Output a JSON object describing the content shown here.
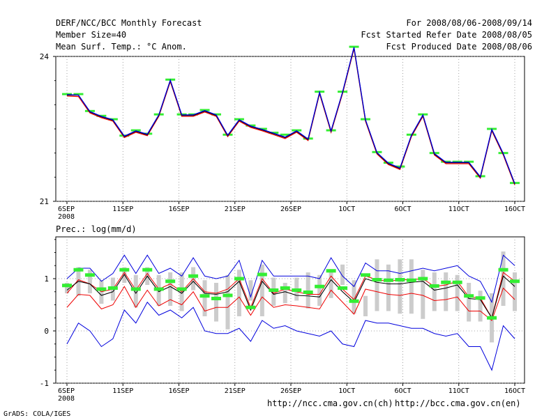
{
  "header": {
    "title": "DERF/NCC/BCC Monthly Forecast",
    "member_size": "Member Size=40",
    "variable": "Mean Surf. Temp.: °C Anom.",
    "period": "For 2008/08/06-2008/09/14",
    "fcst_started": "Fcst Started Refer Date 2008/08/05",
    "fcst_produced": "Fcst Produced Date 2008/08/06"
  },
  "footer": {
    "grads": "GrADS: COLA/IGES",
    "url_ncc": "http://ncc.cma.gov.cn(ch)",
    "url_bcc": "http://bcc.cma.gov.cn(en)"
  },
  "colors": {
    "green": "#33ee33",
    "red": "#ee0000",
    "blue": "#0000dd",
    "gray": "#cccccc",
    "black": "#000000"
  },
  "chart_data": [
    {
      "type": "line",
      "title": "Mean Surf. Temp.: °C Anom.",
      "x_tick_labels": [
        "6SEP",
        "11SEP",
        "16SEP",
        "21SEP",
        "26SEP",
        "1OCT",
        "6OCT",
        "11OCT",
        "16OCT"
      ],
      "x_tick_sublabel": "2008",
      "x_tick_days": [
        0,
        5,
        10,
        15,
        20,
        25,
        30,
        35,
        40
      ],
      "ylim": [
        21,
        24
      ],
      "y_ticks": [
        21,
        24
      ],
      "grid": true,
      "series": [
        {
          "name": "ensemble max",
          "color": "#33ee33",
          "values": [
            23.22,
            23.22,
            22.87,
            22.77,
            22.7,
            22.36,
            22.47,
            22.4,
            22.8,
            23.52,
            22.8,
            22.8,
            22.89,
            22.8,
            22.38,
            22.7,
            22.57,
            22.5,
            22.42,
            22.38,
            22.47,
            22.3,
            23.27,
            22.47,
            23.27,
            24.2,
            22.7,
            22.02,
            21.8,
            21.72,
            22.38,
            22.8,
            22.0,
            21.82,
            21.82,
            21.82,
            21.52,
            22.5,
            22.0,
            21.38
          ]
        },
        {
          "name": "ensemble mean",
          "color": "#000000",
          "values": [
            23.2,
            23.2,
            22.85,
            22.75,
            22.68,
            22.34,
            22.45,
            22.38,
            22.78,
            23.5,
            22.78,
            22.78,
            22.87,
            22.78,
            22.36,
            22.68,
            22.55,
            22.48,
            22.4,
            22.32,
            22.45,
            22.28,
            23.25,
            22.45,
            23.25,
            24.18,
            22.68,
            22.0,
            21.78,
            21.68,
            22.36,
            22.78,
            21.98,
            21.8,
            21.8,
            21.8,
            21.5,
            22.48,
            21.98,
            21.36
          ]
        },
        {
          "name": "ensemble min",
          "color": "#ee0000",
          "values": [
            23.18,
            23.17,
            22.83,
            22.73,
            22.66,
            22.32,
            22.43,
            22.36,
            22.76,
            23.48,
            22.76,
            22.76,
            22.85,
            22.76,
            22.34,
            22.66,
            22.53,
            22.46,
            22.38,
            22.3,
            22.43,
            22.26,
            23.23,
            22.43,
            23.23,
            24.16,
            22.66,
            21.98,
            21.76,
            21.66,
            22.34,
            22.76,
            21.96,
            21.78,
            21.78,
            21.78,
            21.48,
            22.46,
            21.96,
            21.34
          ]
        },
        {
          "name": "control",
          "color": "#0000dd",
          "values": [
            23.21,
            23.2,
            22.86,
            22.76,
            22.69,
            22.35,
            22.46,
            22.39,
            22.79,
            23.51,
            22.79,
            22.79,
            22.88,
            22.79,
            22.37,
            22.69,
            22.56,
            22.49,
            22.41,
            22.33,
            22.46,
            22.29,
            23.26,
            22.46,
            23.26,
            24.19,
            22.69,
            22.01,
            21.79,
            21.69,
            22.37,
            22.79,
            21.99,
            21.81,
            21.81,
            21.81,
            21.51,
            22.49,
            21.99,
            21.37
          ]
        }
      ]
    },
    {
      "type": "line",
      "title": "Prec.: log(mm/d)",
      "x_tick_labels": [
        "6SEP",
        "11SEP",
        "16SEP",
        "21SEP",
        "26SEP",
        "1OCT",
        "6OCT",
        "11OCT",
        "16OCT"
      ],
      "x_tick_sublabel": "2008",
      "x_tick_days": [
        0,
        5,
        10,
        15,
        20,
        25,
        30,
        35,
        40
      ],
      "ylim": [
        -1,
        1.8
      ],
      "y_ticks": [
        -1,
        0,
        1
      ],
      "grid": true,
      "series": [
        {
          "name": "percentile range",
          "color": "#cccccc",
          "low": [
            0.72,
            0.67,
            0.72,
            0.52,
            0.58,
            0.92,
            0.45,
            0.88,
            0.48,
            0.48,
            0.38,
            0.78,
            0.28,
            0.18,
            0.03,
            0.28,
            0.58,
            0.28,
            0.48,
            0.53,
            0.58,
            0.43,
            0.48,
            0.63,
            0.88,
            0.33,
            0.28,
            0.38,
            0.38,
            0.33,
            0.33,
            0.23,
            0.38,
            0.38,
            0.38,
            0.18,
            0.18,
            -0.22,
            0.48,
            0.38
          ],
          "high": [
            0.92,
            1.22,
            1.17,
            0.97,
            1.02,
            1.22,
            1.07,
            1.22,
            1.07,
            1.12,
            1.12,
            1.22,
            0.97,
            0.92,
            1.07,
            1.17,
            0.97,
            1.27,
            1.02,
            0.92,
            1.02,
            1.12,
            1.07,
            1.17,
            1.27,
            0.97,
            0.67,
            1.37,
            1.27,
            1.37,
            1.37,
            1.17,
            1.12,
            1.12,
            1.07,
            0.92,
            0.77,
            0.72,
            1.52,
            1.12
          ]
        },
        {
          "name": "ensemble mean marker",
          "color": "#33ee33",
          "values": [
            0.87,
            1.17,
            1.07,
            0.8,
            0.82,
            1.17,
            0.8,
            1.17,
            0.8,
            0.95,
            0.8,
            1.05,
            0.67,
            0.62,
            0.68,
            1.0,
            0.45,
            1.08,
            0.78,
            0.82,
            0.78,
            0.74,
            0.85,
            1.15,
            0.82,
            0.57,
            1.07,
            0.98,
            0.97,
            0.98,
            0.97,
            1.0,
            0.86,
            0.93,
            0.93,
            0.67,
            0.63,
            0.25,
            1.17,
            0.95
          ]
        },
        {
          "name": "median",
          "color": "#000000",
          "values": [
            0.78,
            0.95,
            0.9,
            0.68,
            0.75,
            1.08,
            0.72,
            1.05,
            0.75,
            0.85,
            0.72,
            0.95,
            0.72,
            0.7,
            0.75,
            0.95,
            0.4,
            0.95,
            0.7,
            0.75,
            0.68,
            0.67,
            0.65,
            0.98,
            0.75,
            0.55,
            1.0,
            0.93,
            0.9,
            0.9,
            0.93,
            0.95,
            0.78,
            0.82,
            0.88,
            0.62,
            0.6,
            0.25,
            1.05,
            0.85
          ]
        },
        {
          "name": "red upper",
          "color": "#ee0000",
          "values": [
            0.72,
            0.98,
            0.9,
            0.75,
            0.8,
            1.12,
            0.78,
            1.1,
            0.8,
            0.9,
            0.75,
            1.0,
            0.75,
            0.72,
            0.8,
            1.0,
            0.45,
            1.0,
            0.72,
            0.8,
            0.75,
            0.7,
            0.7,
            1.05,
            0.8,
            0.6,
            1.05,
            0.98,
            0.95,
            0.98,
            0.98,
            1.0,
            0.85,
            0.88,
            0.95,
            0.65,
            0.63,
            0.25,
            1.12,
            0.95
          ]
        },
        {
          "name": "red lower",
          "color": "#ee0000",
          "values": [
            0.45,
            0.7,
            0.68,
            0.42,
            0.5,
            0.85,
            0.45,
            0.78,
            0.48,
            0.6,
            0.5,
            0.75,
            0.38,
            0.45,
            0.45,
            0.65,
            0.3,
            0.65,
            0.45,
            0.5,
            0.48,
            0.45,
            0.42,
            0.78,
            0.55,
            0.32,
            0.8,
            0.75,
            0.7,
            0.68,
            0.72,
            0.68,
            0.58,
            0.6,
            0.65,
            0.38,
            0.38,
            0.2,
            0.82,
            0.6
          ]
        },
        {
          "name": "blue upper",
          "color": "#0000dd",
          "values": [
            1.0,
            1.2,
            1.2,
            0.95,
            1.1,
            1.45,
            1.1,
            1.45,
            1.1,
            1.2,
            1.05,
            1.4,
            1.05,
            1.0,
            1.05,
            1.35,
            0.65,
            1.35,
            1.05,
            1.05,
            1.05,
            1.05,
            1.0,
            1.4,
            1.05,
            0.85,
            1.3,
            1.15,
            1.15,
            1.1,
            1.15,
            1.2,
            1.15,
            1.2,
            1.25,
            1.05,
            0.95,
            0.55,
            1.45,
            1.25
          ]
        },
        {
          "name": "blue lower",
          "color": "#0000dd",
          "values": [
            -0.25,
            0.15,
            0.0,
            -0.3,
            -0.15,
            0.4,
            0.15,
            0.55,
            0.3,
            0.4,
            0.25,
            0.45,
            0.0,
            -0.05,
            -0.05,
            0.05,
            -0.2,
            0.2,
            0.05,
            0.1,
            0.0,
            -0.05,
            -0.1,
            0.0,
            -0.25,
            -0.3,
            0.2,
            0.15,
            0.15,
            0.1,
            0.05,
            0.05,
            -0.05,
            -0.1,
            -0.05,
            -0.3,
            -0.3,
            -0.75,
            0.1,
            -0.15
          ]
        }
      ]
    }
  ]
}
